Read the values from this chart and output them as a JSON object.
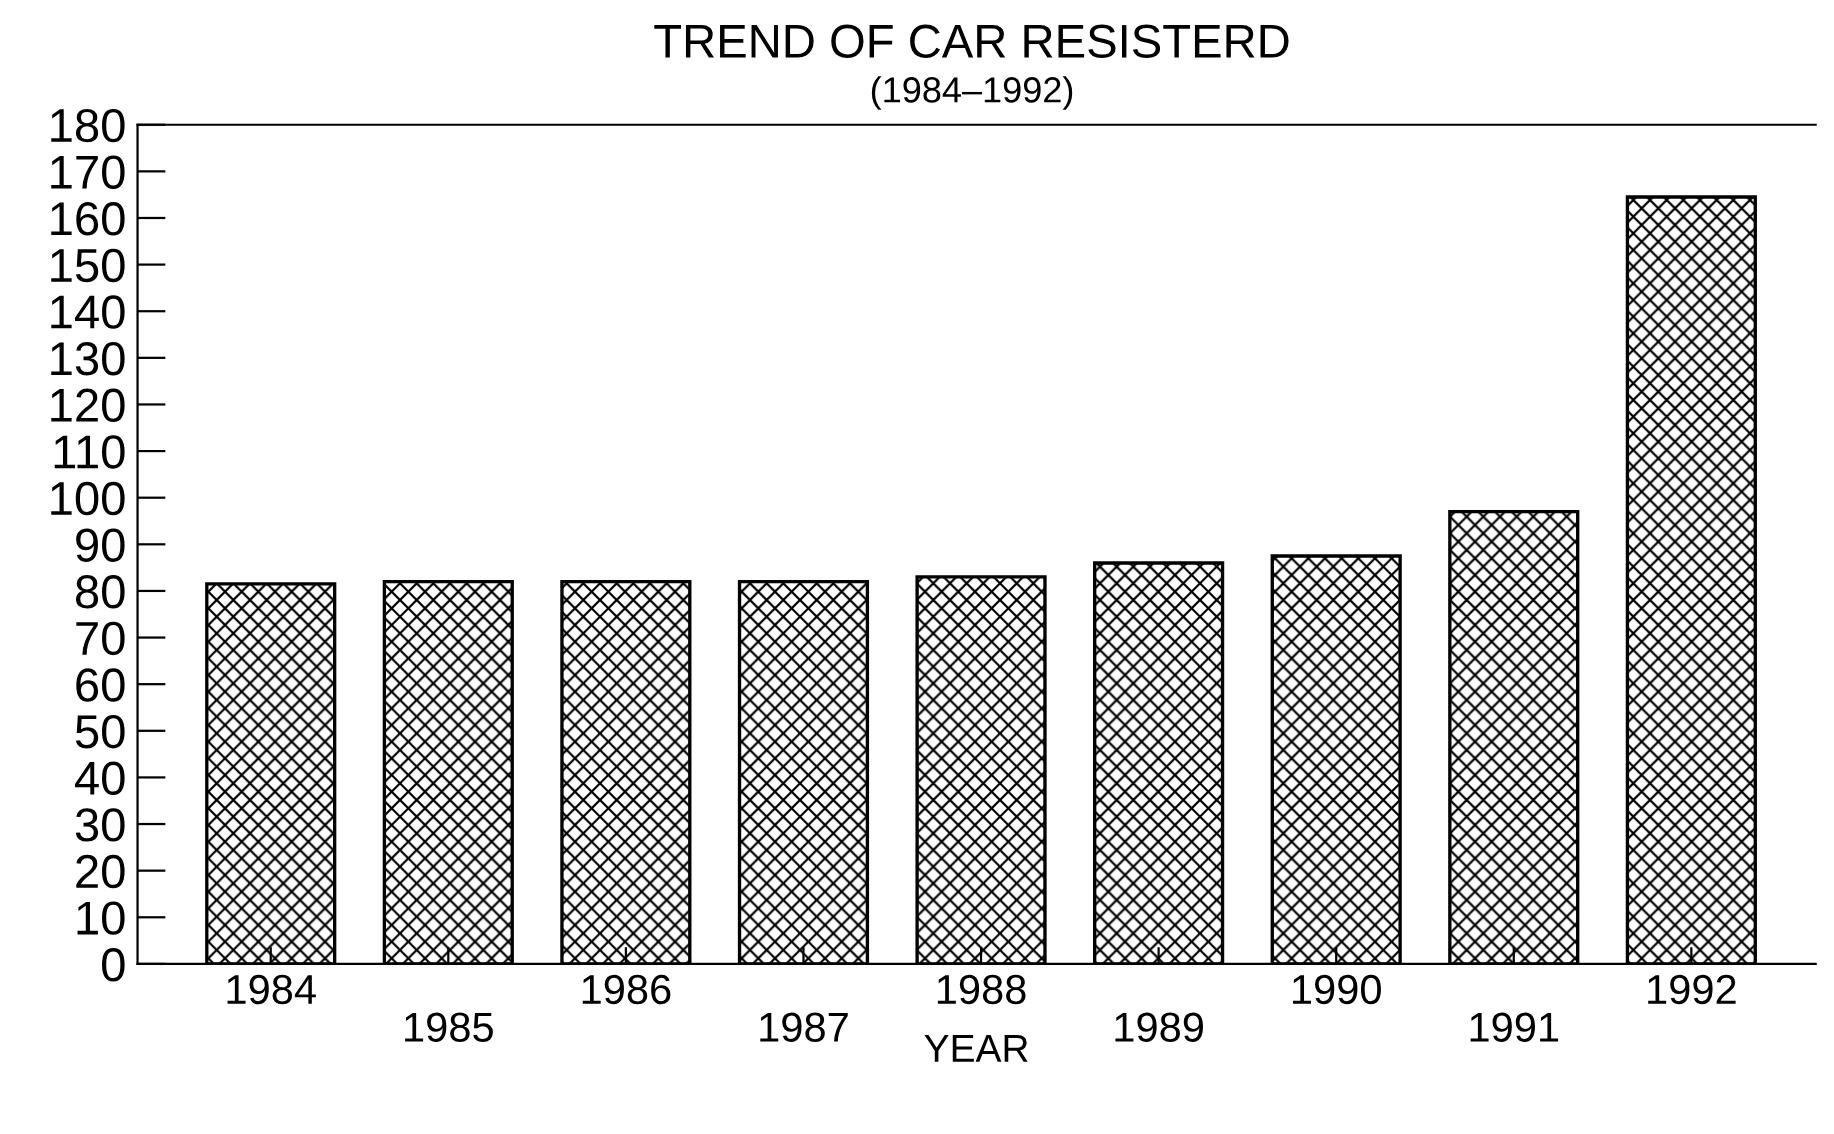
{
  "chart_data": {
    "type": "bar",
    "title": "TREND OF CAR RESISTERD",
    "subtitle": "(1984–1992)",
    "xlabel": "YEAR",
    "categories": [
      "1984",
      "1985",
      "1986",
      "1987",
      "1988",
      "1989",
      "1990",
      "1991",
      "1992"
    ],
    "values": [
      81.5,
      82,
      82,
      82,
      83,
      86,
      87.5,
      97,
      164.5
    ],
    "color": "#000000",
    "ylim": [
      0,
      180
    ],
    "yticks": [
      0,
      10,
      20,
      30,
      40,
      50,
      60,
      70,
      80,
      90,
      100,
      110,
      120,
      130,
      140,
      150,
      160,
      170,
      180
    ],
    "grid": false,
    "legend": false
  }
}
